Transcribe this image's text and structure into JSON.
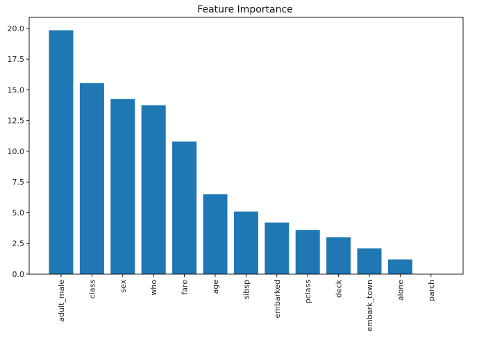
{
  "chart_data": {
    "type": "bar",
    "title": "Feature Importance",
    "xlabel": "",
    "ylabel": "",
    "categories": [
      "adult_male",
      "class",
      "sex",
      "who",
      "fare",
      "age",
      "sibsp",
      "embarked",
      "pclass",
      "deck",
      "embark_town",
      "alone",
      "parch"
    ],
    "values": [
      19.85,
      15.55,
      14.25,
      13.75,
      10.8,
      6.5,
      5.1,
      4.2,
      3.6,
      3.0,
      2.1,
      1.2,
      0.0
    ],
    "ylim": [
      0,
      20.9
    ],
    "yticks": [
      "0.0",
      "2.5",
      "5.0",
      "7.5",
      "10.0",
      "12.5",
      "15.0",
      "17.5",
      "20.0"
    ],
    "bar_color": "#1f77b4",
    "grid": false,
    "legend": false
  }
}
